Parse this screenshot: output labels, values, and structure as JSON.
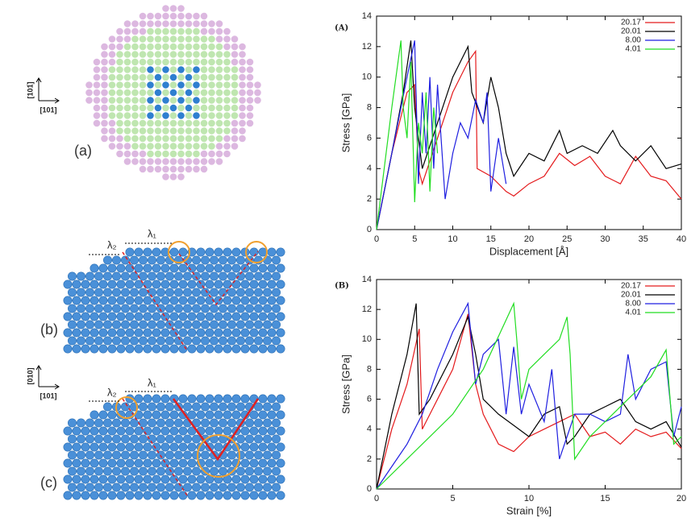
{
  "chart_data": [
    {
      "type": "line",
      "title": "(A)",
      "xlabel": "Displacement [Å]",
      "ylabel": "Stress [GPa]",
      "xlim": [
        0,
        40
      ],
      "ylim": [
        0,
        14
      ],
      "xticks": [
        0,
        5,
        10,
        15,
        20,
        25,
        30,
        35,
        40
      ],
      "yticks": [
        0,
        2,
        4,
        6,
        8,
        10,
        12,
        14
      ],
      "series": [
        {
          "name": "20.17",
          "color": "#e41a1c",
          "x": [
            0,
            2,
            3,
            4,
            5,
            5.5,
            6,
            8,
            10,
            12,
            13,
            13.2,
            15,
            17,
            18,
            20,
            22,
            24,
            26,
            28,
            30,
            32,
            34,
            36,
            38,
            40
          ],
          "values": [
            0,
            5,
            7,
            9,
            9.5,
            4,
            3,
            6,
            9,
            11,
            11.7,
            4,
            3.5,
            2.5,
            2.2,
            3,
            3.5,
            5,
            4.2,
            4.8,
            3.5,
            3,
            4.8,
            3.5,
            3.2,
            2
          ]
        },
        {
          "name": "20.01",
          "color": "#000000",
          "x": [
            0,
            2,
            3.5,
            4.5,
            5,
            6,
            8,
            10,
            11,
            12,
            12.5,
            14,
            15,
            16,
            17,
            18,
            20,
            22,
            24,
            25,
            27,
            29,
            31,
            32,
            34,
            36,
            38,
            40
          ],
          "values": [
            0,
            5,
            9,
            12.4,
            8,
            4,
            7,
            10,
            11,
            12,
            9,
            7,
            10,
            8,
            5,
            3.5,
            5,
            4.5,
            6.5,
            5,
            5.5,
            5,
            6.5,
            5.5,
            4.5,
            5.5,
            4,
            4.3
          ]
        },
        {
          "name": "8.00",
          "color": "#1f1fe0",
          "x": [
            0,
            2,
            4,
            5,
            5.5,
            6,
            6.5,
            7,
            7.5,
            8,
            9,
            10,
            11,
            12,
            13,
            14,
            14.5,
            15,
            16,
            17
          ],
          "values": [
            0,
            5,
            10,
            12.4,
            3,
            9,
            5,
            10,
            4,
            9.5,
            2,
            5,
            7,
            6,
            8.5,
            7,
            9,
            2.5,
            6,
            3
          ]
        },
        {
          "name": "4.01",
          "color": "#22dd22",
          "x": [
            0,
            1,
            2,
            3.2,
            3.5,
            4,
            4.5,
            5,
            5.5,
            6,
            6.5,
            7,
            7.5,
            8
          ],
          "values": [
            0,
            4,
            8,
            12.4,
            8,
            6,
            11,
            1.8,
            7,
            5,
            9,
            2.5,
            8,
            5
          ]
        }
      ]
    },
    {
      "type": "line",
      "title": "(B)",
      "xlabel": "Strain [%]",
      "ylabel": "Stress [GPa]",
      "xlim": [
        0,
        20
      ],
      "ylim": [
        0,
        14
      ],
      "xticks": [
        0,
        5,
        10,
        15,
        20
      ],
      "yticks": [
        0,
        2,
        4,
        6,
        8,
        10,
        12,
        14
      ],
      "series": [
        {
          "name": "20.17",
          "color": "#e41a1c",
          "x": [
            0,
            1,
            2,
            2.8,
            3,
            4,
            5,
            6,
            6.5,
            7,
            8,
            9,
            10,
            11,
            12,
            13,
            14,
            15,
            16,
            17,
            18,
            19,
            20
          ],
          "values": [
            0,
            4,
            7,
            10.7,
            4,
            6,
            8,
            11.7,
            7,
            5,
            3,
            2.5,
            3.5,
            4,
            4.5,
            5,
            3.5,
            3.8,
            3,
            4,
            3.5,
            3.8,
            2.7
          ]
        },
        {
          "name": "20.01",
          "color": "#000000",
          "x": [
            0,
            1,
            2,
            2.6,
            2.8,
            3.5,
            5,
            6,
            6.5,
            7,
            8,
            10,
            11,
            12,
            12.5,
            13,
            14,
            15,
            16,
            17,
            18,
            19,
            20
          ],
          "values": [
            0,
            5,
            9,
            12.4,
            5,
            6,
            9,
            11.5,
            9,
            6,
            5,
            3.5,
            5,
            5.5,
            3,
            3.5,
            5,
            5.5,
            6,
            4.5,
            4,
            4.5,
            2.8
          ]
        },
        {
          "name": "8.00",
          "color": "#1f1fe0",
          "x": [
            0,
            1,
            2,
            3,
            4,
            5,
            6,
            6.5,
            7,
            8,
            8.5,
            9,
            9.5,
            10,
            11,
            11.5,
            12,
            12.5,
            13,
            14,
            15,
            16,
            16.5,
            17,
            18,
            19,
            19.5,
            20
          ],
          "values": [
            0,
            1.5,
            3,
            5,
            8,
            10.5,
            12.4,
            7,
            9,
            10,
            5,
            9.5,
            5,
            7,
            4.5,
            8,
            2,
            3.5,
            5,
            5,
            4.5,
            5,
            9,
            6,
            8,
            8.5,
            3.5,
            5.5
          ]
        },
        {
          "name": "4.01",
          "color": "#22dd22",
          "x": [
            0,
            3,
            5,
            7,
            9,
            9.2,
            9.5,
            10,
            11,
            12,
            12.5,
            12.7,
            13,
            14,
            15,
            16,
            17,
            18,
            19,
            19.5,
            20
          ],
          "values": [
            0,
            3,
            5,
            8,
            12.4,
            10,
            6,
            8,
            9,
            10,
            11.5,
            9,
            2,
            3.5,
            4.5,
            5.5,
            6.5,
            7.5,
            9.3,
            3,
            3.5
          ]
        }
      ]
    }
  ],
  "panels": {
    "a": {
      "label": "(a)",
      "dir_h": "[101]",
      "dir_v": "[101̅]"
    },
    "b": {
      "label": "(b)",
      "lambda1": "λ₁",
      "lambda2": "λ₂"
    },
    "c": {
      "label": "(c)",
      "lambda1": "λ₁",
      "lambda2": "λ₂",
      "dir_h": "[101]",
      "dir_v": "[010]"
    }
  }
}
